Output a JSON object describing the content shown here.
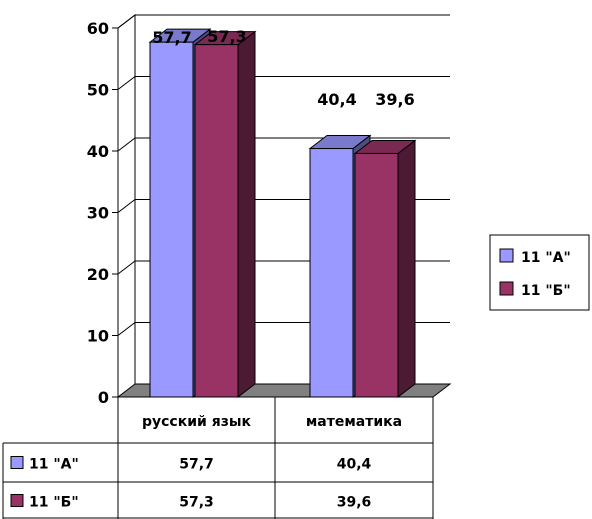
{
  "chart_data": {
    "type": "bar",
    "categories": [
      "русский язык",
      "математика"
    ],
    "series": [
      {
        "name": "11 \"А\"",
        "values": [
          57.7,
          40.4
        ],
        "value_labels": [
          "57,7",
          "40,4"
        ],
        "color": "#9999ff"
      },
      {
        "name": "11 \"Б\"",
        "values": [
          57.3,
          39.6
        ],
        "value_labels": [
          "57,3",
          "39,6"
        ],
        "color": "#993366"
      }
    ],
    "ylim": [
      0,
      60
    ],
    "yticks": [
      0,
      10,
      20,
      30,
      40,
      50,
      60
    ],
    "grid": true,
    "legend": "right",
    "data_table": true,
    "title": "",
    "xlabel": "",
    "ylabel": ""
  }
}
